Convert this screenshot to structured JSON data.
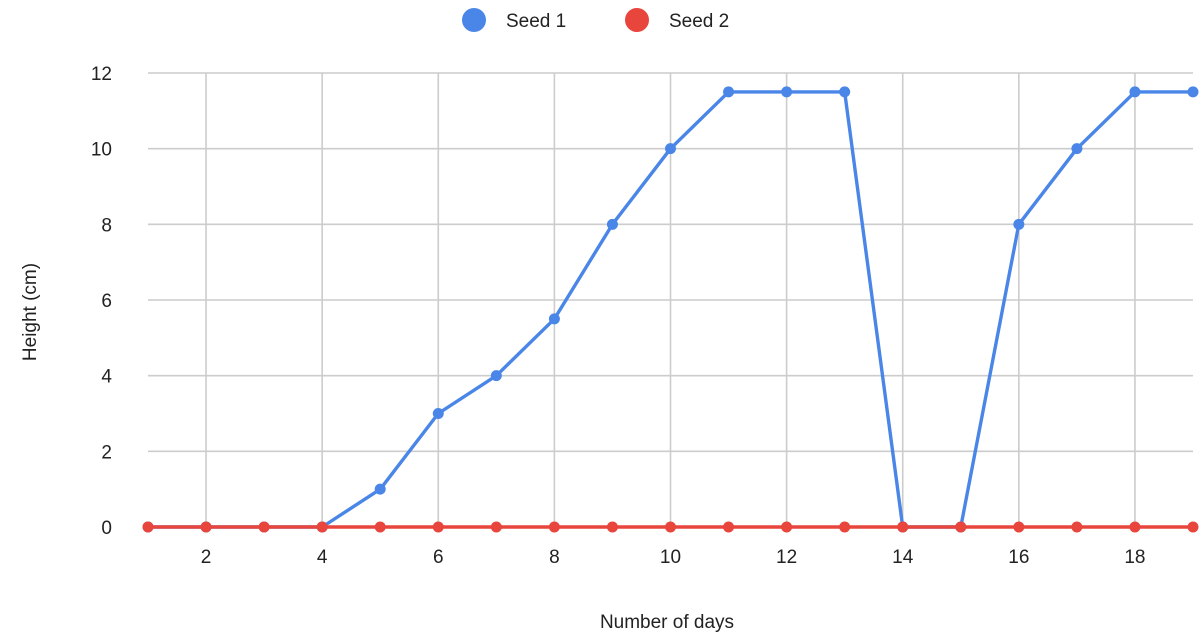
{
  "chart_data": {
    "type": "line",
    "title": "",
    "xlabel": "Number of days",
    "ylabel": "Height (cm)",
    "xlim": [
      1,
      19
    ],
    "ylim": [
      0,
      12
    ],
    "x_ticks": [
      2,
      4,
      6,
      8,
      10,
      12,
      14,
      16,
      18
    ],
    "y_ticks": [
      0,
      2,
      4,
      6,
      8,
      10,
      12
    ],
    "grid": true,
    "legend_position": "top-center",
    "x": [
      1,
      2,
      3,
      4,
      5,
      6,
      7,
      8,
      9,
      10,
      11,
      12,
      13,
      14,
      15,
      16,
      17,
      18,
      19
    ],
    "series": [
      {
        "name": "Seed 1",
        "color": "#4a86e8",
        "values": [
          0,
          0,
          0,
          0,
          1,
          3,
          4,
          5.5,
          8,
          10,
          11.5,
          11.5,
          11.5,
          0,
          0,
          8,
          10,
          11.5,
          11.5
        ]
      },
      {
        "name": "Seed 2",
        "color": "#e8453c",
        "values": [
          0,
          0,
          0,
          0,
          0,
          0,
          0,
          0,
          0,
          0,
          0,
          0,
          0,
          0,
          0,
          0,
          0,
          0,
          0
        ]
      }
    ]
  }
}
